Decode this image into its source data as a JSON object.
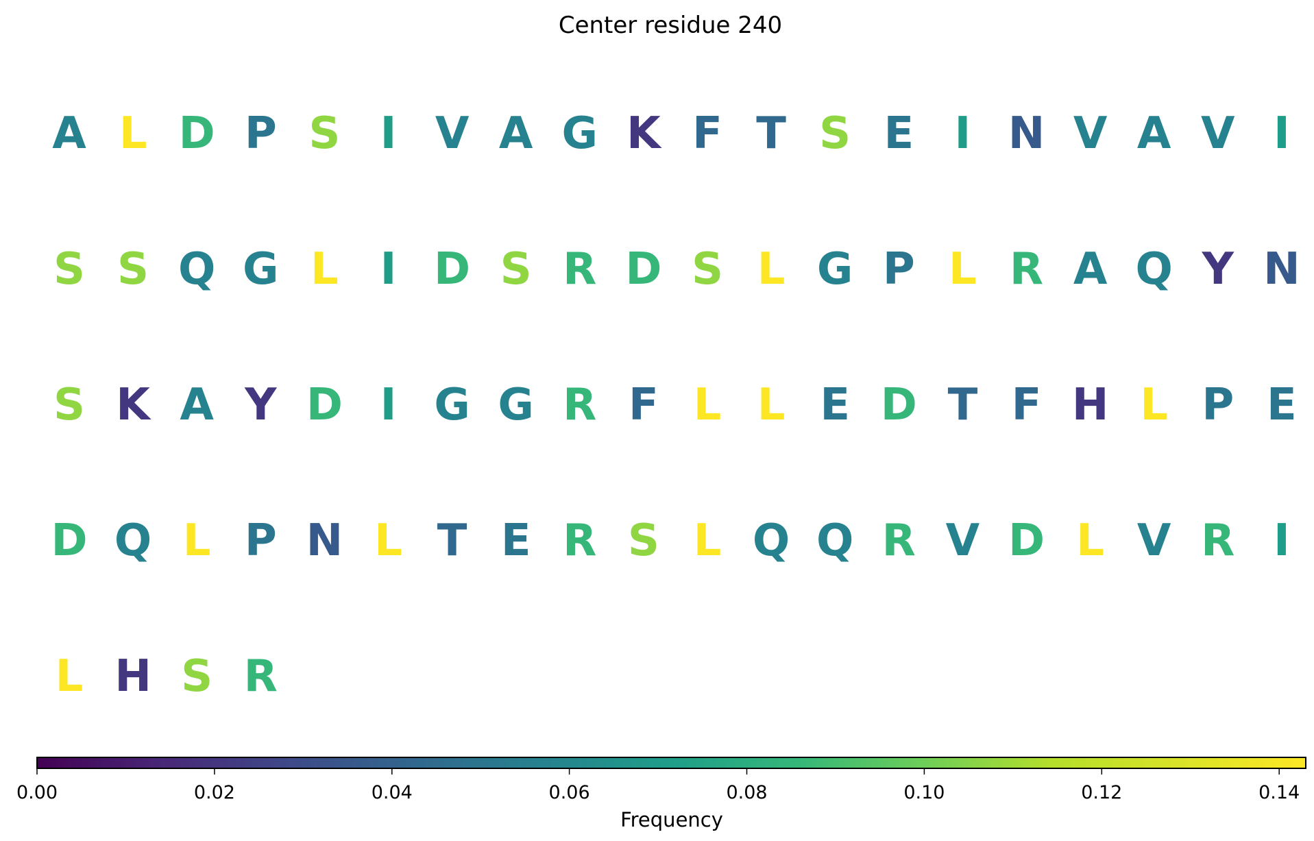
{
  "chart_data": {
    "type": "heatmap",
    "title": "Center residue 240",
    "colormap": "viridis",
    "rows": [
      [
        "A",
        "L",
        "D",
        "P",
        "S",
        "I",
        "V",
        "A",
        "G",
        "K",
        "F",
        "T",
        "S",
        "E",
        "I",
        "N",
        "V",
        "A",
        "V",
        "I"
      ],
      [
        "S",
        "S",
        "Q",
        "G",
        "L",
        "I",
        "D",
        "S",
        "R",
        "D",
        "S",
        "L",
        "G",
        "P",
        "L",
        "R",
        "A",
        "Q",
        "Y",
        "N"
      ],
      [
        "S",
        "K",
        "A",
        "Y",
        "D",
        "I",
        "G",
        "G",
        "R",
        "F",
        "L",
        "L",
        "E",
        "D",
        "T",
        "F",
        "H",
        "L",
        "P",
        "E"
      ],
      [
        "D",
        "Q",
        "L",
        "P",
        "N",
        "L",
        "T",
        "E",
        "R",
        "S",
        "L",
        "Q",
        "Q",
        "R",
        "V",
        "D",
        "L",
        "V",
        "R",
        "I"
      ],
      [
        "L",
        "H",
        "S",
        "R"
      ]
    ],
    "frequencies": {
      "L": 0.143,
      "S": 0.107,
      "D": 0.086,
      "R": 0.086,
      "I": 0.071,
      "A": 0.057,
      "V": 0.057,
      "Q": 0.057,
      "G": 0.057,
      "E": 0.05,
      "P": 0.05,
      "F": 0.043,
      "T": 0.043,
      "N": 0.036,
      "K": 0.021,
      "H": 0.021,
      "Y": 0.021
    },
    "colorbar": {
      "label": "Frequency",
      "range": [
        0,
        0.143
      ],
      "ticks": [
        "0.00",
        "0.02",
        "0.04",
        "0.06",
        "0.08",
        "0.10",
        "0.12",
        "0.14"
      ]
    }
  }
}
